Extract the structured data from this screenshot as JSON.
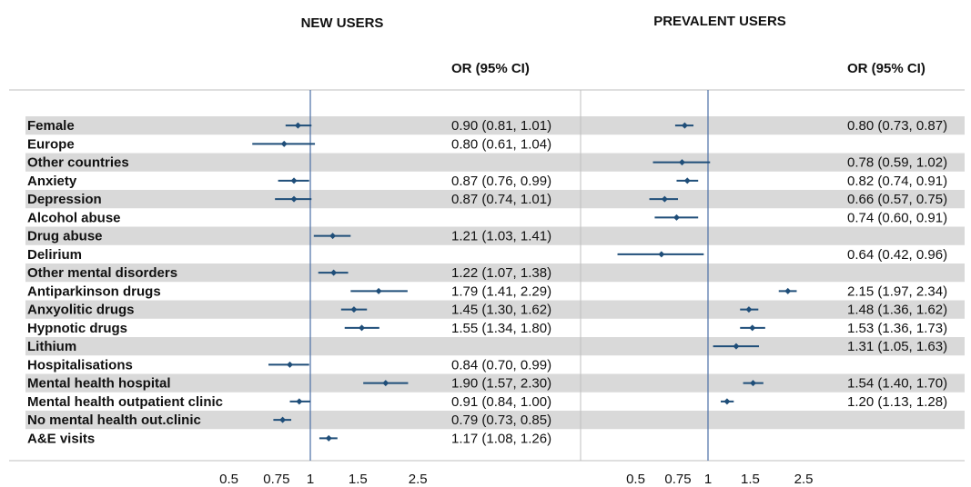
{
  "chart_data": {
    "type": "forest",
    "colors": {
      "marker": "#1f4e79",
      "ref_line": "#4a6fa5",
      "band": "#d9d9d9"
    },
    "xscale": "log",
    "ref_value": 1,
    "xticks": [
      "0.5",
      "0.75",
      "1",
      "1.5",
      "2.5"
    ],
    "or_header": "OR (95% CI)",
    "labels": [
      "Female",
      "Europe",
      "Other countries",
      "Anxiety",
      "Depression",
      "Alcohol abuse",
      "Drug abuse",
      "Delirium",
      "Other mental disorders",
      "Antiparkinson drugs",
      "Anxyolitic drugs",
      "Hypnotic drugs",
      "Lithium",
      "Hospitalisations",
      "Mental health hospital",
      "Mental health outpatient clinic",
      "No mental health out.clinic",
      "A&E visits"
    ],
    "panels": [
      {
        "title": "NEW USERS",
        "rows": [
          {
            "or": 0.9,
            "lo": 0.81,
            "hi": 1.01,
            "text": "0.90 (0.81, 1.01)"
          },
          {
            "or": 0.8,
            "lo": 0.61,
            "hi": 1.04,
            "text": "0.80 (0.61, 1.04)"
          },
          null,
          {
            "or": 0.87,
            "lo": 0.76,
            "hi": 0.99,
            "text": "0.87 (0.76, 0.99)"
          },
          {
            "or": 0.87,
            "lo": 0.74,
            "hi": 1.01,
            "text": "0.87 (0.74, 1.01)"
          },
          null,
          {
            "or": 1.21,
            "lo": 1.03,
            "hi": 1.41,
            "text": "1.21 (1.03, 1.41)"
          },
          null,
          {
            "or": 1.22,
            "lo": 1.07,
            "hi": 1.38,
            "text": "1.22 (1.07, 1.38)"
          },
          {
            "or": 1.79,
            "lo": 1.41,
            "hi": 2.29,
            "text": "1.79 (1.41, 2.29)"
          },
          {
            "or": 1.45,
            "lo": 1.3,
            "hi": 1.62,
            "text": "1.45 (1.30, 1.62)"
          },
          {
            "or": 1.55,
            "lo": 1.34,
            "hi": 1.8,
            "text": "1.55 (1.34, 1.80)"
          },
          null,
          {
            "or": 0.84,
            "lo": 0.7,
            "hi": 0.99,
            "text": "0.84 (0.70, 0.99)"
          },
          {
            "or": 1.9,
            "lo": 1.57,
            "hi": 2.3,
            "text": "1.90 (1.57, 2.30)"
          },
          {
            "or": 0.91,
            "lo": 0.84,
            "hi": 1.0,
            "text": "0.91 (0.84, 1.00)"
          },
          {
            "or": 0.79,
            "lo": 0.73,
            "hi": 0.85,
            "text": "0.79 (0.73, 0.85)"
          },
          {
            "or": 1.17,
            "lo": 1.08,
            "hi": 1.26,
            "text": "1.17 (1.08, 1.26)"
          }
        ]
      },
      {
        "title": "PREVALENT USERS",
        "rows": [
          {
            "or": 0.8,
            "lo": 0.73,
            "hi": 0.87,
            "text": "0.80 (0.73, 0.87)"
          },
          null,
          {
            "or": 0.78,
            "lo": 0.59,
            "hi": 1.02,
            "text": "0.78 (0.59, 1.02)"
          },
          {
            "or": 0.82,
            "lo": 0.74,
            "hi": 0.91,
            "text": "0.82 (0.74, 0.91)"
          },
          {
            "or": 0.66,
            "lo": 0.57,
            "hi": 0.75,
            "text": "0.66 (0.57, 0.75)"
          },
          {
            "or": 0.74,
            "lo": 0.6,
            "hi": 0.91,
            "text": "0.74 (0.60, 0.91)"
          },
          null,
          {
            "or": 0.64,
            "lo": 0.42,
            "hi": 0.96,
            "text": "0.64 (0.42, 0.96)"
          },
          null,
          {
            "or": 2.15,
            "lo": 1.97,
            "hi": 2.34,
            "text": "2.15 (1.97, 2.34)"
          },
          {
            "or": 1.48,
            "lo": 1.36,
            "hi": 1.62,
            "text": "1.48 (1.36, 1.62)"
          },
          {
            "or": 1.53,
            "lo": 1.36,
            "hi": 1.73,
            "text": "1.53 (1.36, 1.73)"
          },
          {
            "or": 1.31,
            "lo": 1.05,
            "hi": 1.63,
            "text": "1.31 (1.05, 1.63)"
          },
          null,
          {
            "or": 1.54,
            "lo": 1.4,
            "hi": 1.7,
            "text": "1.54 (1.40, 1.70)"
          },
          {
            "or": 1.2,
            "lo": 1.13,
            "hi": 1.28,
            "text": "1.20 (1.13, 1.28)"
          },
          null,
          null
        ]
      }
    ]
  }
}
